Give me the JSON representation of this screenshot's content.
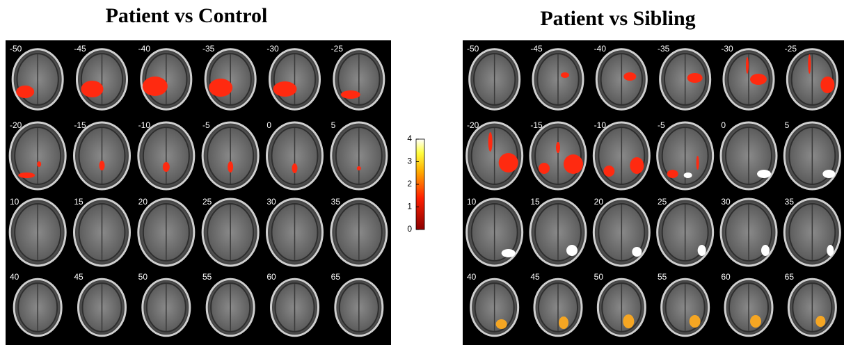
{
  "panels": [
    {
      "title": "Patient vs Control",
      "slices": [
        -50,
        -45,
        -40,
        -35,
        -30,
        -25,
        -20,
        -15,
        -10,
        -5,
        0,
        5,
        10,
        15,
        20,
        25,
        30,
        35,
        40,
        45,
        50,
        55,
        60,
        65
      ]
    },
    {
      "title": "Patient vs Sibling",
      "slices": [
        -50,
        -45,
        -40,
        -35,
        -30,
        -25,
        -20,
        -15,
        -10,
        -5,
        0,
        5,
        10,
        15,
        20,
        25,
        30,
        35,
        40,
        45,
        50,
        55,
        60,
        65
      ]
    }
  ],
  "colorbar": {
    "lim": [
      0,
      4
    ],
    "ticks": [
      0,
      1,
      2,
      3,
      4
    ]
  }
}
